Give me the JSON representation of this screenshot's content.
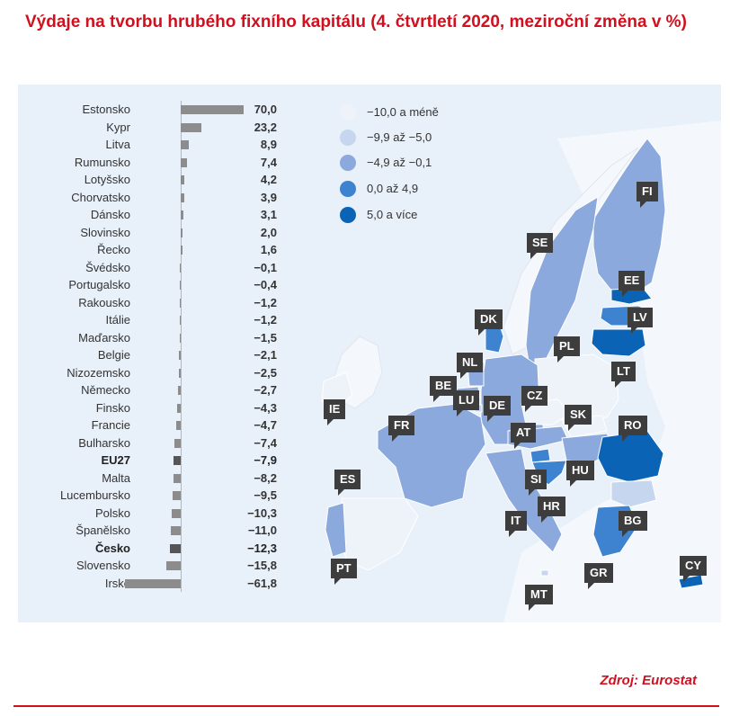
{
  "title": "Výdaje na tvorbu hrubého fixního kapitálu (4. čtvrtletí 2020, meziroční změna v %)",
  "source": "Zdroj: Eurostat",
  "colors": {
    "title": "#d0101e",
    "bar": "#8c8c8c",
    "bar_highlight": "#555555",
    "panel": "#e8f0fa",
    "tag": "#3d3d3d"
  },
  "legend": [
    {
      "label": "−10,0 a méně",
      "color": "#eef2f9"
    },
    {
      "label": "−9,9 až −5,0",
      "color": "#c7d6ef"
    },
    {
      "label": "−4,9 až −0,1",
      "color": "#8ba9dc"
    },
    {
      "label": "0,0 až 4,9",
      "color": "#3e83cf"
    },
    {
      "label": "5,0 a více",
      "color": "#0b63b6"
    }
  ],
  "chart_data": {
    "type": "bar",
    "orientation": "horizontal",
    "categories": [
      "Estonsko",
      "Kypr",
      "Litva",
      "Rumunsko",
      "Lotyšsko",
      "Chorvatsko",
      "Dánsko",
      "Slovinsko",
      "Řecko",
      "Švédsko",
      "Portugalsko",
      "Rakousko",
      "Itálie",
      "Maďarsko",
      "Belgie",
      "Nizozemsko",
      "Německo",
      "Finsko",
      "Francie",
      "Bulharsko",
      "EU27",
      "Malta",
      "Lucembursko",
      "Polsko",
      "Španělsko",
      "Česko",
      "Slovensko",
      "Irsko"
    ],
    "values": [
      70.0,
      23.2,
      8.9,
      7.4,
      4.2,
      3.9,
      3.1,
      2.0,
      1.6,
      -0.1,
      -0.4,
      -1.2,
      -1.2,
      -1.5,
      -2.1,
      -2.5,
      -2.7,
      -4.3,
      -4.7,
      -7.4,
      -7.9,
      -8.2,
      -9.5,
      -10.3,
      -11.0,
      -12.3,
      -15.8,
      -61.8
    ],
    "labels": [
      "70,0",
      "23,2",
      "8,9",
      "7,4",
      "4,2",
      "3,9",
      "3,1",
      "2,0",
      "1,6",
      "−0,1",
      "−0,4",
      "−1,2",
      "−1,2",
      "−1,5",
      "−2,1",
      "−2,5",
      "−2,7",
      "−4,3",
      "−4,7",
      "−7,4",
      "−7,9",
      "−8,2",
      "−9,5",
      "−10,3",
      "−11,0",
      "−12,3",
      "−15,8",
      "−61,8"
    ],
    "highlight": [
      "EU27",
      "Česko"
    ]
  },
  "map": {
    "countries": [
      {
        "code": "FI",
        "class": 3
      },
      {
        "code": "SE",
        "class": 3
      },
      {
        "code": "EE",
        "class": 5
      },
      {
        "code": "LV",
        "class": 4
      },
      {
        "code": "LT",
        "class": 5
      },
      {
        "code": "DK",
        "class": 4
      },
      {
        "code": "PL",
        "class": 1
      },
      {
        "code": "NL",
        "class": 3
      },
      {
        "code": "BE",
        "class": 3
      },
      {
        "code": "LU",
        "class": 2
      },
      {
        "code": "DE",
        "class": 3
      },
      {
        "code": "CZ",
        "class": 1
      },
      {
        "code": "SK",
        "class": 1
      },
      {
        "code": "IE",
        "class": 1
      },
      {
        "code": "FR",
        "class": 3
      },
      {
        "code": "AT",
        "class": 3
      },
      {
        "code": "HU",
        "class": 3
      },
      {
        "code": "RO",
        "class": 5
      },
      {
        "code": "SI",
        "class": 4
      },
      {
        "code": "HR",
        "class": 4
      },
      {
        "code": "ES",
        "class": 1
      },
      {
        "code": "PT",
        "class": 3
      },
      {
        "code": "IT",
        "class": 3
      },
      {
        "code": "BG",
        "class": 2
      },
      {
        "code": "GR",
        "class": 4
      },
      {
        "code": "MT",
        "class": 2
      },
      {
        "code": "CY",
        "class": 5
      }
    ]
  }
}
